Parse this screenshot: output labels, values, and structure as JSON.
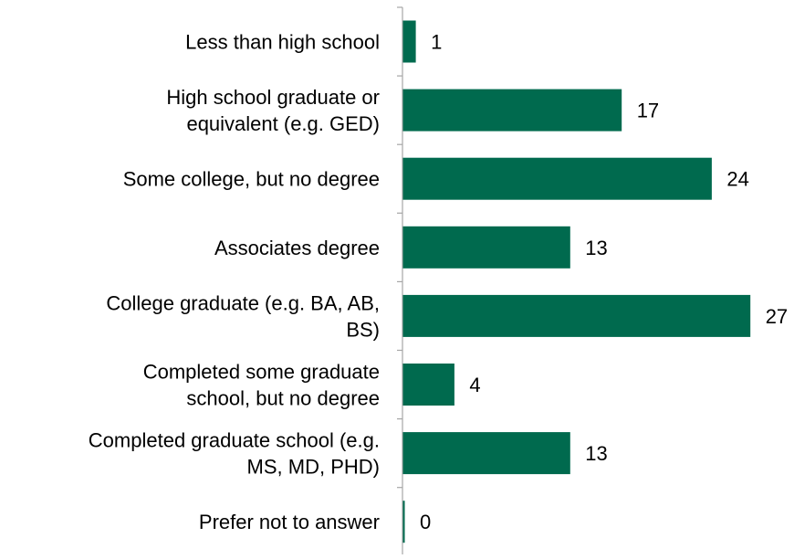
{
  "chart_data": {
    "type": "bar",
    "orientation": "horizontal",
    "categories": [
      [
        "Less than high school"
      ],
      [
        "High school graduate or",
        "equivalent (e.g. GED)"
      ],
      [
        "Some college, but no degree"
      ],
      [
        "Associates degree"
      ],
      [
        "College graduate (e.g. BA, AB,",
        "BS)"
      ],
      [
        "Completed some graduate",
        "school, but no degree"
      ],
      [
        "Completed graduate school (e.g.",
        "MS, MD, PHD)"
      ],
      [
        "Prefer not to answer"
      ]
    ],
    "values": [
      1,
      17,
      24,
      13,
      27,
      4,
      13,
      0
    ],
    "data_labels": [
      "1",
      "17",
      "24",
      "13",
      "27",
      "4",
      "13",
      "0"
    ],
    "xlim": [
      0,
      27
    ],
    "grid": false,
    "legend": "none",
    "bar_color": "#006A4E",
    "axis_color": "#a6a6a6",
    "text_color": "#000000"
  }
}
